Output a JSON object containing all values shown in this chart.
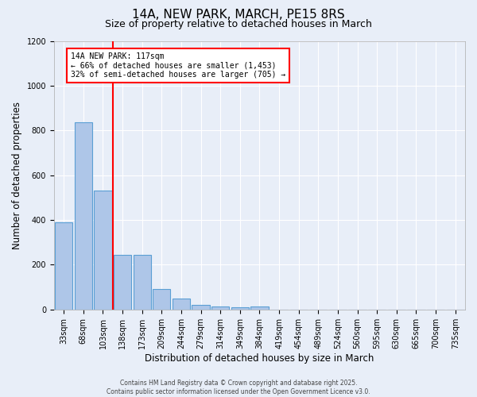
{
  "title": "14A, NEW PARK, MARCH, PE15 8RS",
  "subtitle": "Size of property relative to detached houses in March",
  "xlabel": "Distribution of detached houses by size in March",
  "ylabel": "Number of detached properties",
  "categories": [
    "33sqm",
    "68sqm",
    "103sqm",
    "138sqm",
    "173sqm",
    "209sqm",
    "244sqm",
    "279sqm",
    "314sqm",
    "349sqm",
    "384sqm",
    "419sqm",
    "454sqm",
    "489sqm",
    "524sqm",
    "560sqm",
    "595sqm",
    "630sqm",
    "665sqm",
    "700sqm",
    "735sqm"
  ],
  "values": [
    390,
    835,
    530,
    245,
    245,
    90,
    50,
    20,
    15,
    10,
    15,
    0,
    0,
    0,
    0,
    0,
    0,
    0,
    0,
    0,
    0
  ],
  "bar_color": "#aec6e8",
  "bar_edge_color": "#5a9fd4",
  "red_line_x": 2.5,
  "annotation_text": "14A NEW PARK: 117sqm\n← 66% of detached houses are smaller (1,453)\n32% of semi-detached houses are larger (705) →",
  "annotation_box_color": "white",
  "annotation_box_edge": "red",
  "ylim": [
    0,
    1200
  ],
  "yticks": [
    0,
    200,
    400,
    600,
    800,
    1000,
    1200
  ],
  "background_color": "#e8eef8",
  "plot_bg_color": "#e8eef8",
  "footer_line1": "Contains HM Land Registry data © Crown copyright and database right 2025.",
  "footer_line2": "Contains public sector information licensed under the Open Government Licence v3.0.",
  "title_fontsize": 11,
  "subtitle_fontsize": 9,
  "tick_fontsize": 7,
  "axis_label_fontsize": 8.5,
  "annotation_fontsize": 7,
  "footer_fontsize": 5.5
}
